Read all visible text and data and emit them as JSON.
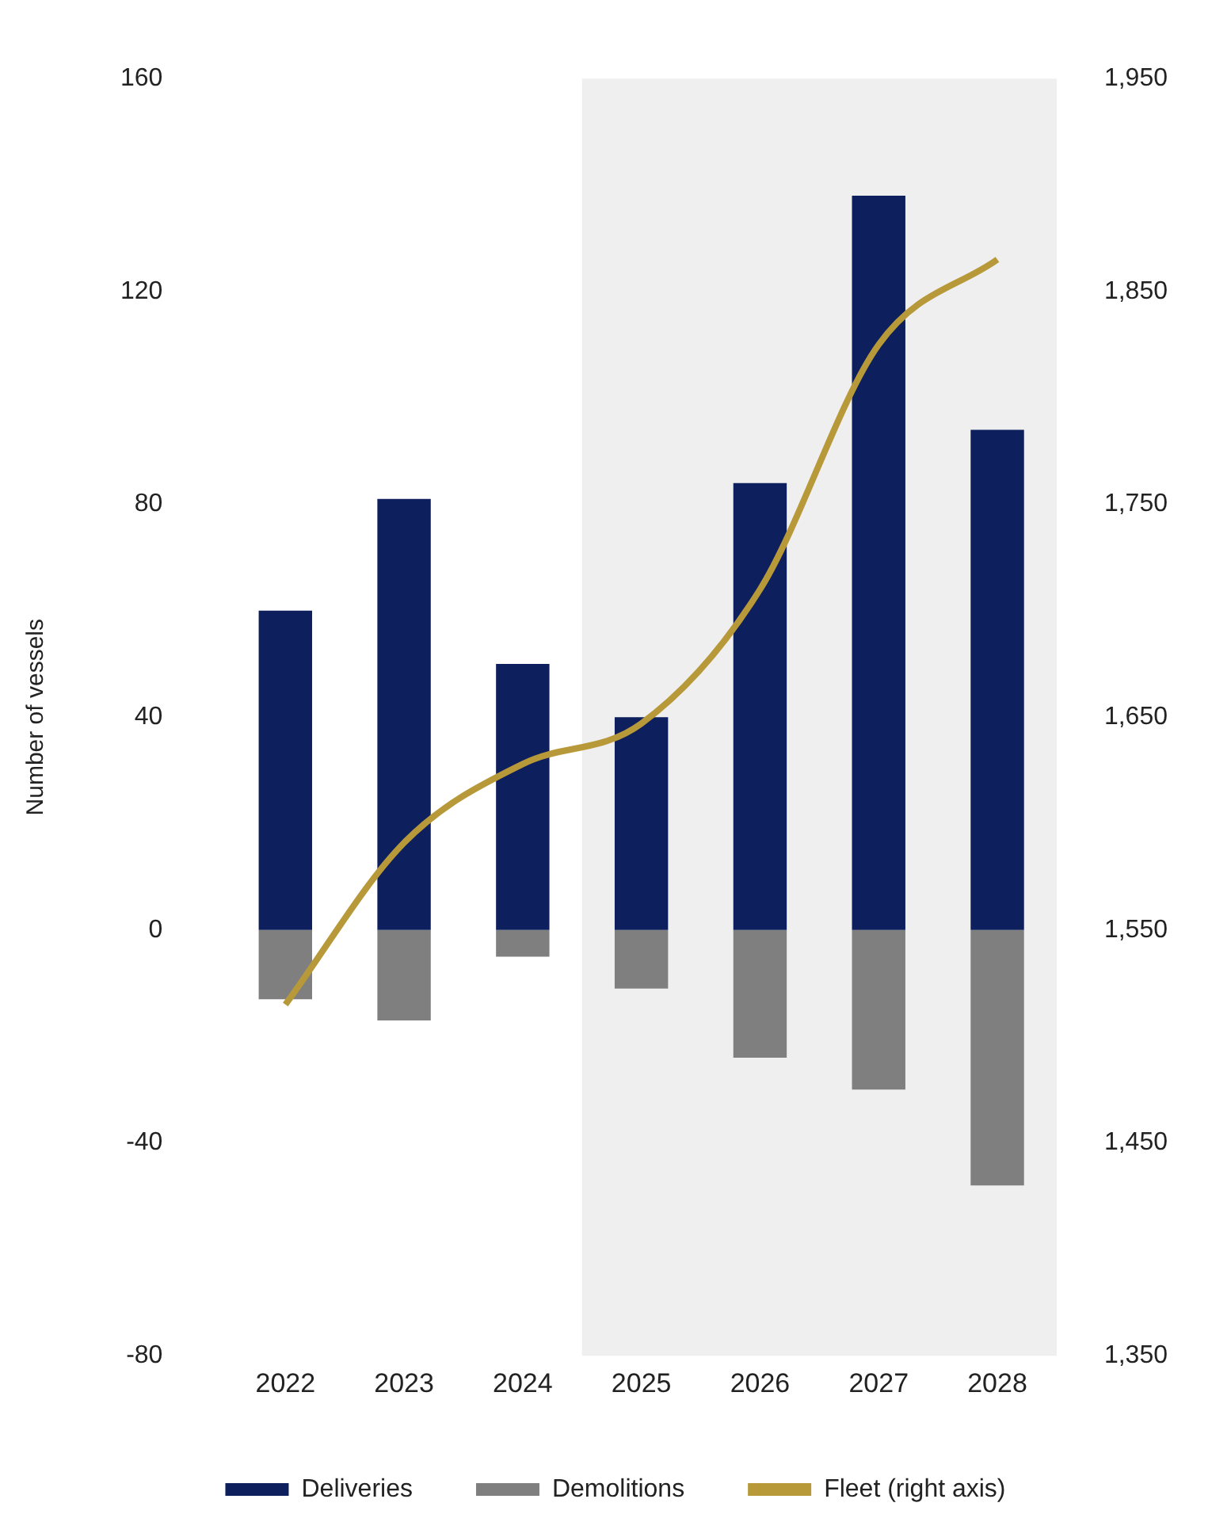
{
  "chart_data": {
    "type": "bar",
    "stacked": true,
    "ylabel": "Number of vessels",
    "categories": [
      "2022",
      "2023",
      "2024",
      "2025",
      "2026",
      "2027",
      "2028"
    ],
    "series": [
      {
        "name": "Deliveries",
        "color": "#0d1f5c",
        "values": [
          60,
          81,
          50,
          40,
          84,
          138,
          94
        ]
      },
      {
        "name": "Demolitions",
        "color": "#7f7f7f",
        "values": [
          -13,
          -17,
          -5,
          -11,
          -24,
          -30,
          -48
        ]
      },
      {
        "name": "Fleet (right axis)",
        "type": "line",
        "axis": "y2",
        "color": "#b8993a",
        "values": [
          1515,
          1591,
          1628,
          1647,
          1710,
          1825,
          1865
        ]
      }
    ],
    "ylim": [
      -80,
      160
    ],
    "yticks": [
      -80,
      -40,
      0,
      40,
      80,
      120,
      160
    ],
    "y2lim": [
      1350,
      1950
    ],
    "y2ticks": [
      {
        "value": 1350,
        "label": "1,350"
      },
      {
        "value": 1450,
        "label": "1,450"
      },
      {
        "value": 1550,
        "label": "1,550"
      },
      {
        "value": 1650,
        "label": "1,650"
      },
      {
        "value": 1750,
        "label": "1,750"
      },
      {
        "value": 1850,
        "label": "1,850"
      },
      {
        "value": 1950,
        "label": "1,950"
      }
    ],
    "bands": [
      {
        "axis": "x",
        "from": "2025",
        "to": "2028",
        "color": "#efefef"
      }
    ],
    "grid": false,
    "legend": "bottom",
    "marker": "none",
    "line_style": "solid"
  }
}
